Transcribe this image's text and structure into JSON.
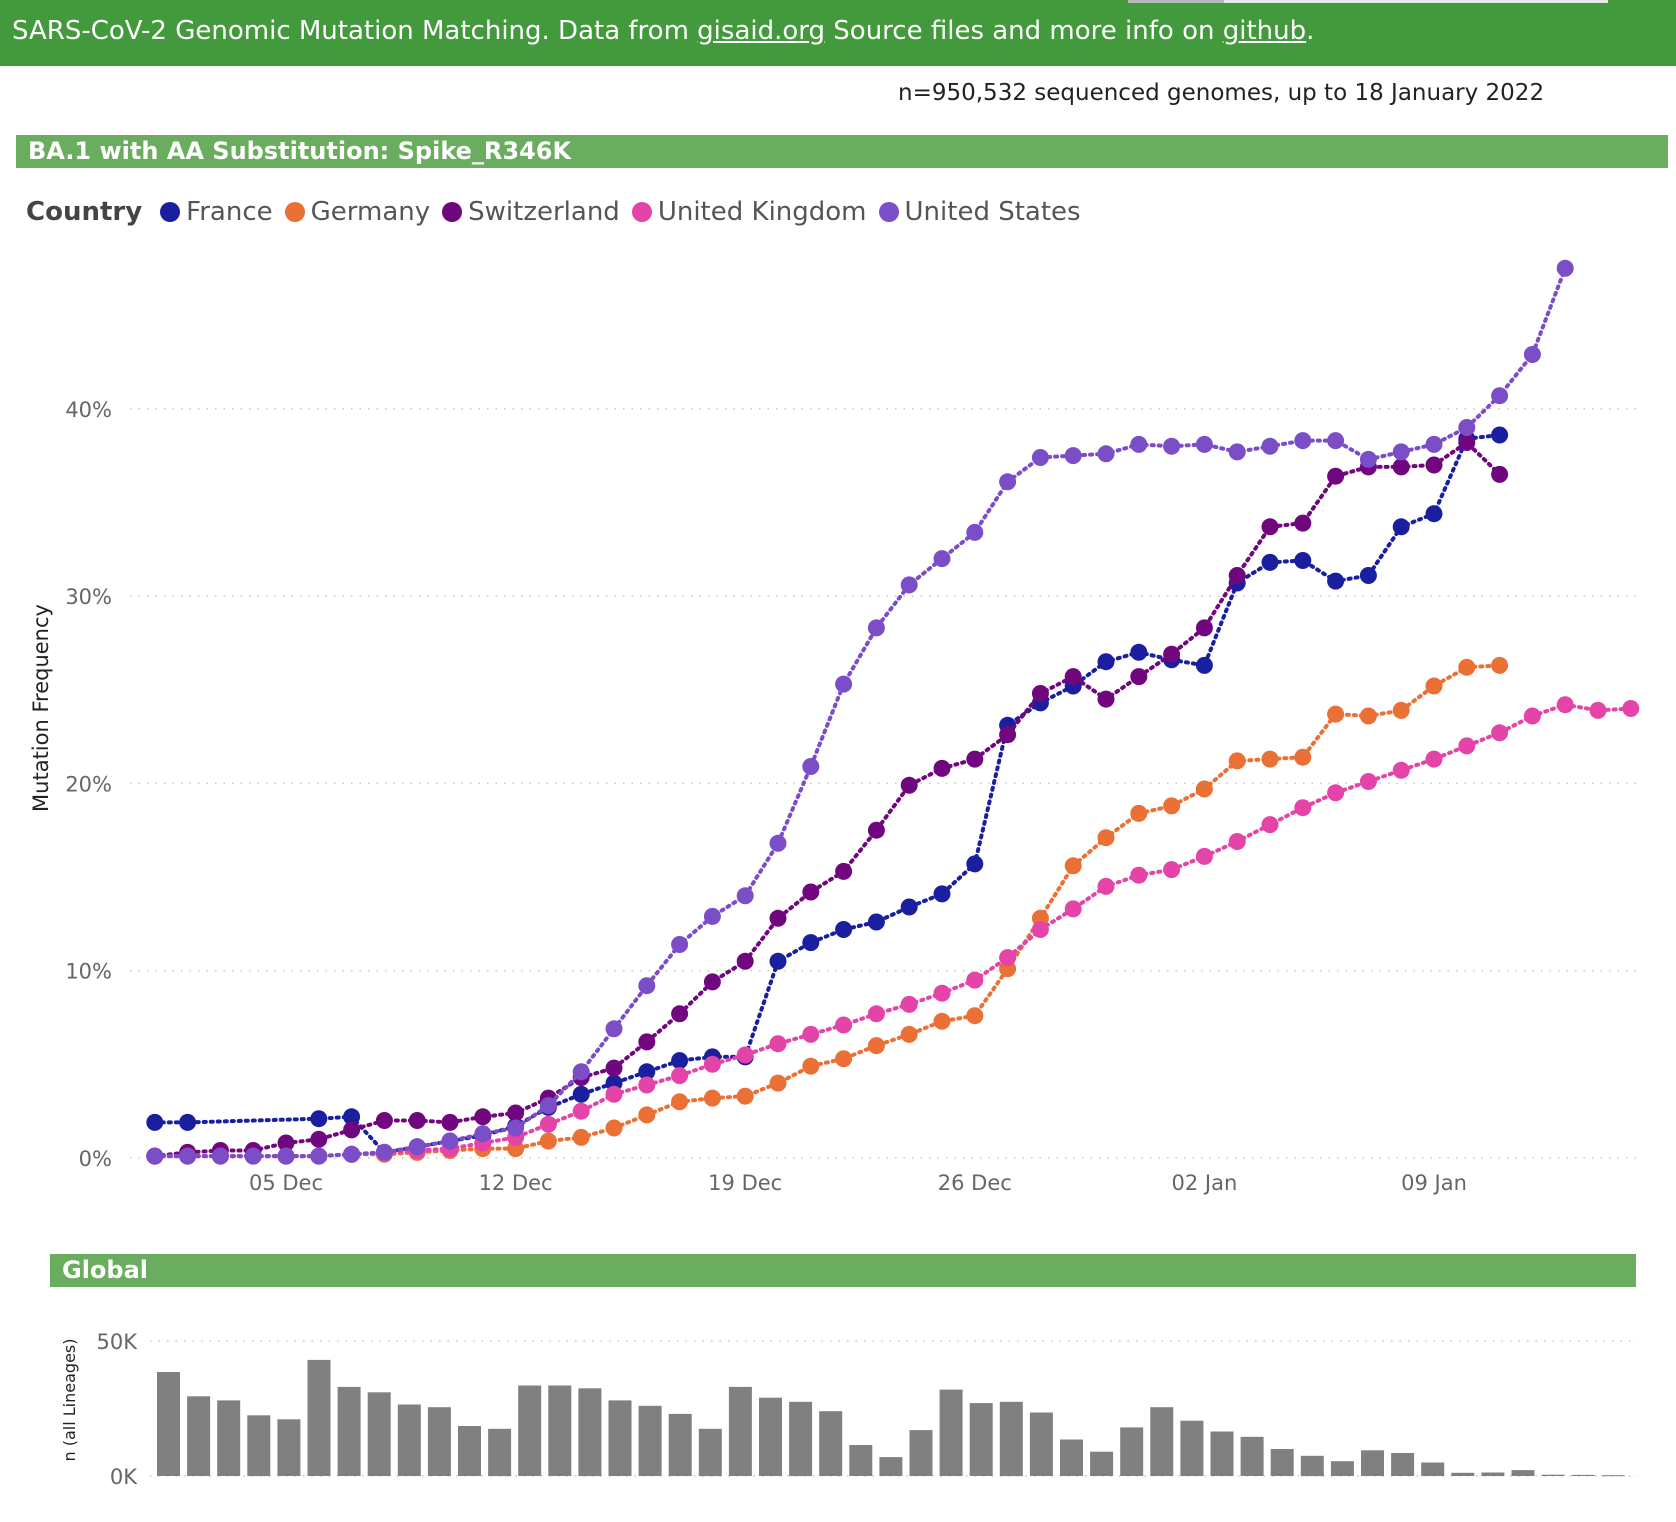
{
  "header": {
    "text_before": "SARS-CoV-2 Genomic Mutation Matching. Data from ",
    "link1": "gisaid.org",
    "text_middle": " Source files and more info on ",
    "link2": "github",
    "text_after": "."
  },
  "count_line": "n=950,532 sequenced genomes, up to 18 January 2022",
  "section_main_title": "BA.1 with AA Substitution: Spike_R346K",
  "section_global_title": "Global",
  "legend_title": "Country",
  "colors": {
    "banner": "#439a3c",
    "section_bar": "#6aad5f",
    "bars": "#808080"
  },
  "chart_data": [
    {
      "type": "line",
      "title": "",
      "xlabel": "",
      "ylabel": "Mutation Frequency",
      "x_tick_labels": [
        "05 Dec",
        "12 Dec",
        "19 Dec",
        "26 Dec",
        "02 Jan",
        "09 Jan"
      ],
      "y_tick_labels": [
        "0%",
        "10%",
        "20%",
        "30%",
        "40%"
      ],
      "ylim": [
        0,
        0.47
      ],
      "xlim": [
        "2021-11-30",
        "2022-01-15"
      ],
      "grid": true,
      "line_style": "dotted with circle markers",
      "legend_position": "top-left",
      "series": [
        {
          "name": "France",
          "color": "#1a1fa0",
          "points": [
            [
              "2021-12-01",
              0.019
            ],
            [
              "2021-12-02",
              0.019
            ],
            [
              "2021-12-06",
              0.021
            ],
            [
              "2021-12-07",
              0.022
            ],
            [
              "2021-12-08",
              0.003
            ],
            [
              "2021-12-09",
              0.006
            ],
            [
              "2021-12-10",
              0.009
            ],
            [
              "2021-12-11",
              0.012
            ],
            [
              "2021-12-12",
              0.017
            ],
            [
              "2021-12-13",
              0.027
            ],
            [
              "2021-12-14",
              0.034
            ],
            [
              "2021-12-15",
              0.04
            ],
            [
              "2021-12-16",
              0.046
            ],
            [
              "2021-12-17",
              0.052
            ],
            [
              "2021-12-18",
              0.054
            ],
            [
              "2021-12-19",
              0.054
            ],
            [
              "2021-12-20",
              0.105
            ],
            [
              "2021-12-21",
              0.115
            ],
            [
              "2021-12-22",
              0.122
            ],
            [
              "2021-12-23",
              0.126
            ],
            [
              "2021-12-24",
              0.134
            ],
            [
              "2021-12-25",
              0.141
            ],
            [
              "2021-12-26",
              0.157
            ],
            [
              "2021-12-27",
              0.231
            ],
            [
              "2021-12-28",
              0.243
            ],
            [
              "2021-12-29",
              0.252
            ],
            [
              "2021-12-30",
              0.265
            ],
            [
              "2021-12-31",
              0.27
            ],
            [
              "2022-01-01",
              0.266
            ],
            [
              "2022-01-02",
              0.263
            ],
            [
              "2022-01-03",
              0.307
            ],
            [
              "2022-01-04",
              0.318
            ],
            [
              "2022-01-05",
              0.319
            ],
            [
              "2022-01-06",
              0.308
            ],
            [
              "2022-01-07",
              0.311
            ],
            [
              "2022-01-08",
              0.337
            ],
            [
              "2022-01-09",
              0.344
            ],
            [
              "2022-01-10",
              0.384
            ],
            [
              "2022-01-11",
              0.386
            ]
          ]
        },
        {
          "name": "Germany",
          "color": "#ea7035",
          "points": [
            [
              "2021-12-01",
              0.001
            ],
            [
              "2021-12-02",
              0.001
            ],
            [
              "2021-12-03",
              0.001
            ],
            [
              "2021-12-04",
              0.001
            ],
            [
              "2021-12-05",
              0.001
            ],
            [
              "2021-12-06",
              0.001
            ],
            [
              "2021-12-07",
              0.002
            ],
            [
              "2021-12-08",
              0.002
            ],
            [
              "2021-12-09",
              0.003
            ],
            [
              "2021-12-10",
              0.004
            ],
            [
              "2021-12-11",
              0.005
            ],
            [
              "2021-12-12",
              0.005
            ],
            [
              "2021-12-13",
              0.009
            ],
            [
              "2021-12-14",
              0.011
            ],
            [
              "2021-12-15",
              0.016
            ],
            [
              "2021-12-16",
              0.023
            ],
            [
              "2021-12-17",
              0.03
            ],
            [
              "2021-12-18",
              0.032
            ],
            [
              "2021-12-19",
              0.033
            ],
            [
              "2021-12-20",
              0.04
            ],
            [
              "2021-12-21",
              0.049
            ],
            [
              "2021-12-22",
              0.053
            ],
            [
              "2021-12-23",
              0.06
            ],
            [
              "2021-12-24",
              0.066
            ],
            [
              "2021-12-25",
              0.073
            ],
            [
              "2021-12-26",
              0.076
            ],
            [
              "2021-12-27",
              0.101
            ],
            [
              "2021-12-28",
              0.128
            ],
            [
              "2021-12-29",
              0.156
            ],
            [
              "2021-12-30",
              0.171
            ],
            [
              "2021-12-31",
              0.184
            ],
            [
              "2022-01-01",
              0.188
            ],
            [
              "2022-01-02",
              0.197
            ],
            [
              "2022-01-03",
              0.212
            ],
            [
              "2022-01-04",
              0.213
            ],
            [
              "2022-01-05",
              0.214
            ],
            [
              "2022-01-06",
              0.237
            ],
            [
              "2022-01-07",
              0.236
            ],
            [
              "2022-01-08",
              0.239
            ],
            [
              "2022-01-09",
              0.252
            ],
            [
              "2022-01-10",
              0.262
            ],
            [
              "2022-01-11",
              0.263
            ]
          ]
        },
        {
          "name": "Switzerland",
          "color": "#70077e",
          "points": [
            [
              "2021-12-01",
              0.001
            ],
            [
              "2021-12-02",
              0.003
            ],
            [
              "2021-12-03",
              0.004
            ],
            [
              "2021-12-04",
              0.004
            ],
            [
              "2021-12-05",
              0.008
            ],
            [
              "2021-12-06",
              0.01
            ],
            [
              "2021-12-07",
              0.015
            ],
            [
              "2021-12-08",
              0.02
            ],
            [
              "2021-12-09",
              0.02
            ],
            [
              "2021-12-10",
              0.019
            ],
            [
              "2021-12-11",
              0.022
            ],
            [
              "2021-12-12",
              0.024
            ],
            [
              "2021-12-13",
              0.032
            ],
            [
              "2021-12-14",
              0.043
            ],
            [
              "2021-12-15",
              0.048
            ],
            [
              "2021-12-16",
              0.062
            ],
            [
              "2021-12-17",
              0.077
            ],
            [
              "2021-12-18",
              0.094
            ],
            [
              "2021-12-19",
              0.105
            ],
            [
              "2021-12-20",
              0.128
            ],
            [
              "2021-12-21",
              0.142
            ],
            [
              "2021-12-22",
              0.153
            ],
            [
              "2021-12-23",
              0.175
            ],
            [
              "2021-12-24",
              0.199
            ],
            [
              "2021-12-25",
              0.208
            ],
            [
              "2021-12-26",
              0.213
            ],
            [
              "2021-12-27",
              0.226
            ],
            [
              "2021-12-28",
              0.248
            ],
            [
              "2021-12-29",
              0.257
            ],
            [
              "2021-12-30",
              0.245
            ],
            [
              "2021-12-31",
              0.257
            ],
            [
              "2022-01-01",
              0.269
            ],
            [
              "2022-01-02",
              0.283
            ],
            [
              "2022-01-03",
              0.311
            ],
            [
              "2022-01-04",
              0.337
            ],
            [
              "2022-01-05",
              0.339
            ],
            [
              "2022-01-06",
              0.364
            ],
            [
              "2022-01-07",
              0.369
            ],
            [
              "2022-01-08",
              0.369
            ],
            [
              "2022-01-09",
              0.37
            ],
            [
              "2022-01-10",
              0.382
            ],
            [
              "2022-01-11",
              0.365
            ]
          ]
        },
        {
          "name": "United Kingdom",
          "color": "#e444a8",
          "points": [
            [
              "2021-12-01",
              0.001
            ],
            [
              "2021-12-02",
              0.001
            ],
            [
              "2021-12-03",
              0.001
            ],
            [
              "2021-12-04",
              0.001
            ],
            [
              "2021-12-05",
              0.001
            ],
            [
              "2021-12-06",
              0.001
            ],
            [
              "2021-12-07",
              0.002
            ],
            [
              "2021-12-08",
              0.003
            ],
            [
              "2021-12-09",
              0.004
            ],
            [
              "2021-12-10",
              0.005
            ],
            [
              "2021-12-11",
              0.008
            ],
            [
              "2021-12-12",
              0.011
            ],
            [
              "2021-12-13",
              0.018
            ],
            [
              "2021-12-14",
              0.025
            ],
            [
              "2021-12-15",
              0.034
            ],
            [
              "2021-12-16",
              0.039
            ],
            [
              "2021-12-17",
              0.044
            ],
            [
              "2021-12-18",
              0.05
            ],
            [
              "2021-12-19",
              0.055
            ],
            [
              "2021-12-20",
              0.061
            ],
            [
              "2021-12-21",
              0.066
            ],
            [
              "2021-12-22",
              0.071
            ],
            [
              "2021-12-23",
              0.077
            ],
            [
              "2021-12-24",
              0.082
            ],
            [
              "2021-12-25",
              0.088
            ],
            [
              "2021-12-26",
              0.095
            ],
            [
              "2021-12-27",
              0.107
            ],
            [
              "2021-12-28",
              0.122
            ],
            [
              "2021-12-29",
              0.133
            ],
            [
              "2021-12-30",
              0.145
            ],
            [
              "2021-12-31",
              0.151
            ],
            [
              "2022-01-01",
              0.154
            ],
            [
              "2022-01-02",
              0.161
            ],
            [
              "2022-01-03",
              0.169
            ],
            [
              "2022-01-04",
              0.178
            ],
            [
              "2022-01-05",
              0.187
            ],
            [
              "2022-01-06",
              0.195
            ],
            [
              "2022-01-07",
              0.201
            ],
            [
              "2022-01-08",
              0.207
            ],
            [
              "2022-01-09",
              0.213
            ],
            [
              "2022-01-10",
              0.22
            ],
            [
              "2022-01-11",
              0.227
            ],
            [
              "2022-01-12",
              0.236
            ],
            [
              "2022-01-13",
              0.242
            ],
            [
              "2022-01-14",
              0.239
            ],
            [
              "2022-01-15",
              0.24
            ]
          ]
        },
        {
          "name": "United States",
          "color": "#7b4dc6",
          "points": [
            [
              "2021-12-01",
              0.001
            ],
            [
              "2021-12-02",
              0.001
            ],
            [
              "2021-12-03",
              0.001
            ],
            [
              "2021-12-04",
              0.001
            ],
            [
              "2021-12-05",
              0.001
            ],
            [
              "2021-12-06",
              0.001
            ],
            [
              "2021-12-07",
              0.002
            ],
            [
              "2021-12-08",
              0.003
            ],
            [
              "2021-12-09",
              0.006
            ],
            [
              "2021-12-10",
              0.009
            ],
            [
              "2021-12-11",
              0.013
            ],
            [
              "2021-12-12",
              0.016
            ],
            [
              "2021-12-13",
              0.028
            ],
            [
              "2021-12-14",
              0.046
            ],
            [
              "2021-12-15",
              0.069
            ],
            [
              "2021-12-16",
              0.092
            ],
            [
              "2021-12-17",
              0.114
            ],
            [
              "2021-12-18",
              0.129
            ],
            [
              "2021-12-19",
              0.14
            ],
            [
              "2021-12-20",
              0.168
            ],
            [
              "2021-12-21",
              0.209
            ],
            [
              "2021-12-22",
              0.253
            ],
            [
              "2021-12-23",
              0.283
            ],
            [
              "2021-12-24",
              0.306
            ],
            [
              "2021-12-25",
              0.32
            ],
            [
              "2021-12-26",
              0.334
            ],
            [
              "2021-12-27",
              0.361
            ],
            [
              "2021-12-28",
              0.374
            ],
            [
              "2021-12-29",
              0.375
            ],
            [
              "2021-12-30",
              0.376
            ],
            [
              "2021-12-31",
              0.381
            ],
            [
              "2022-01-01",
              0.38
            ],
            [
              "2022-01-02",
              0.381
            ],
            [
              "2022-01-03",
              0.377
            ],
            [
              "2022-01-04",
              0.38
            ],
            [
              "2022-01-05",
              0.383
            ],
            [
              "2022-01-06",
              0.383
            ],
            [
              "2022-01-07",
              0.373
            ],
            [
              "2022-01-08",
              0.377
            ],
            [
              "2022-01-09",
              0.381
            ],
            [
              "2022-01-10",
              0.39
            ],
            [
              "2022-01-11",
              0.407
            ],
            [
              "2022-01-12",
              0.429
            ],
            [
              "2022-01-13",
              0.475
            ]
          ]
        }
      ]
    },
    {
      "type": "bar",
      "title": "",
      "xlabel": "",
      "ylabel": "n (all Lineages)",
      "y_tick_labels": [
        "0K",
        "50K"
      ],
      "ylim": [
        0,
        50000
      ],
      "grid": true,
      "x_start": "2021-12-01",
      "x_step_days": 1,
      "values": [
        38500,
        29500,
        28000,
        22500,
        21000,
        43000,
        33000,
        31000,
        26500,
        25500,
        18500,
        17500,
        33500,
        33500,
        32500,
        28000,
        26000,
        23000,
        17500,
        33000,
        29000,
        27500,
        24000,
        11500,
        7000,
        17000,
        32000,
        27000,
        27500,
        23500,
        13500,
        9000,
        18000,
        25500,
        20500,
        16500,
        14500,
        10000,
        7500,
        5500,
        9500,
        8500,
        5000,
        1200,
        1300,
        2200,
        500,
        400,
        300
      ]
    }
  ]
}
